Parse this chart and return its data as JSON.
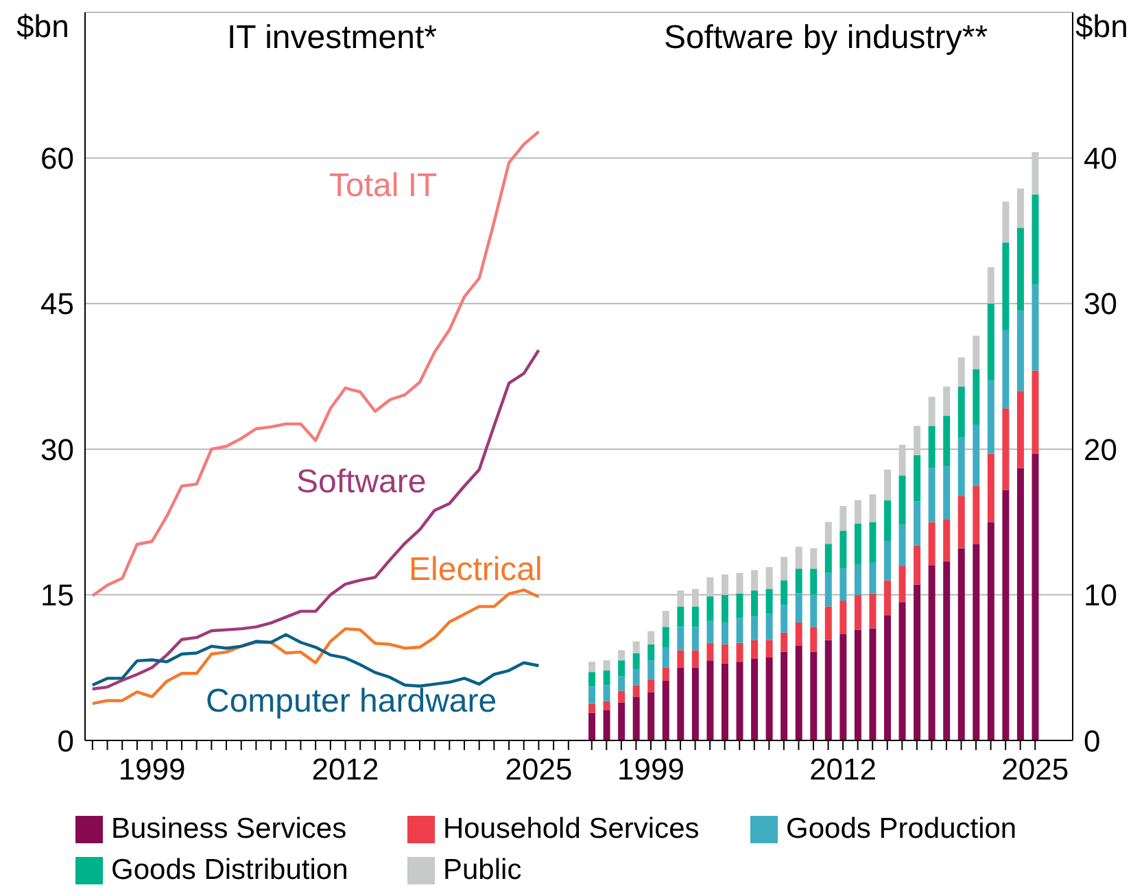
{
  "chart_data": [
    {
      "type": "line",
      "title": "IT investment*",
      "ylabel": "$bn",
      "x": [
        1995,
        1996,
        1997,
        1998,
        1999,
        2000,
        2001,
        2002,
        2003,
        2004,
        2005,
        2006,
        2007,
        2008,
        2009,
        2010,
        2011,
        2012,
        2013,
        2014,
        2015,
        2016,
        2017,
        2018,
        2019,
        2020,
        2021,
        2022,
        2023,
        2024,
        2025
      ],
      "xlim": [
        1994.5,
        2027.7
      ],
      "xticks": [
        {
          "value": 1995,
          "label": null
        },
        {
          "value": 1996,
          "label": null
        },
        {
          "value": 1997,
          "label": null
        },
        {
          "value": 1998,
          "label": null
        },
        1999,
        {
          "value": 2000,
          "label": null
        },
        {
          "value": 2001,
          "label": null
        },
        {
          "value": 2002,
          "label": null
        },
        {
          "value": 2003,
          "label": null
        },
        {
          "value": 2004,
          "label": null
        },
        {
          "value": 2005,
          "label": null
        },
        {
          "value": 2006,
          "label": null
        },
        {
          "value": 2007,
          "label": null
        },
        {
          "value": 2008,
          "label": null
        },
        {
          "value": 2009,
          "label": null
        },
        {
          "value": 2010,
          "label": null
        },
        {
          "value": 2011,
          "label": null
        },
        2012,
        {
          "value": 2013,
          "label": null
        },
        {
          "value": 2014,
          "label": null
        },
        {
          "value": 2015,
          "label": null
        },
        {
          "value": 2016,
          "label": null
        },
        {
          "value": 2017,
          "label": null
        },
        {
          "value": 2018,
          "label": null
        },
        {
          "value": 2019,
          "label": null
        },
        {
          "value": 2020,
          "label": null
        },
        {
          "value": 2021,
          "label": null
        },
        {
          "value": 2022,
          "label": null
        },
        {
          "value": 2023,
          "label": null
        },
        {
          "value": 2024,
          "label": null
        },
        2025,
        {
          "value": 2026,
          "label": null
        },
        {
          "value": 2027,
          "label": null
        }
      ],
      "ylim": [
        0,
        75
      ],
      "yticks": [
        0,
        15,
        30,
        45,
        60
      ],
      "grid": "y",
      "legend": false,
      "series": [
        {
          "name": "Total IT",
          "color": "#f47b7b",
          "values": [
            14.9,
            16.0,
            16.7,
            20.2,
            20.5,
            23.1,
            26.2,
            26.4,
            30.0,
            30.3,
            31.1,
            32.1,
            32.3,
            32.6,
            32.6,
            30.9,
            34.2,
            36.3,
            35.9,
            33.9,
            35.1,
            35.6,
            36.9,
            40.0,
            42.3,
            45.7,
            47.6,
            53.4,
            59.5,
            61.4,
            62.7
          ]
        },
        {
          "name": "Software",
          "color": "#9e3b78",
          "values": [
            5.3,
            5.5,
            6.2,
            6.8,
            7.5,
            8.8,
            10.4,
            10.6,
            11.3,
            11.4,
            11.5,
            11.7,
            12.1,
            12.7,
            13.3,
            13.3,
            15.0,
            16.1,
            16.5,
            16.8,
            18.6,
            20.3,
            21.7,
            23.7,
            24.4,
            26.2,
            27.9,
            32.4,
            36.8,
            37.8,
            40.2
          ]
        },
        {
          "name": "Electrical",
          "color": "#f5792a",
          "values": [
            3.8,
            4.1,
            4.1,
            5.0,
            4.5,
            6.1,
            6.9,
            6.9,
            8.9,
            9.1,
            9.7,
            10.1,
            10.1,
            9.0,
            9.1,
            8.0,
            10.2,
            11.5,
            11.4,
            10.0,
            9.9,
            9.5,
            9.6,
            10.6,
            12.2,
            13.0,
            13.8,
            13.8,
            15.1,
            15.5,
            14.8
          ]
        },
        {
          "name": "Computer hardware",
          "color": "#0b6088",
          "values": [
            5.7,
            6.4,
            6.4,
            8.2,
            8.3,
            8.1,
            8.9,
            9.0,
            9.7,
            9.5,
            9.7,
            10.2,
            10.1,
            10.9,
            10.1,
            9.6,
            8.8,
            8.5,
            7.8,
            7.0,
            6.5,
            5.7,
            5.6,
            5.8,
            6.0,
            6.4,
            5.8,
            6.8,
            7.2,
            8.0,
            7.7
          ]
        }
      ]
    },
    {
      "type": "bar",
      "title": "Software by industry**",
      "ylabel": "$bn",
      "stacked": true,
      "categories": [
        null,
        null,
        null,
        null,
        "1999",
        null,
        null,
        null,
        null,
        null,
        null,
        null,
        null,
        null,
        null,
        null,
        null,
        "2012",
        null,
        null,
        null,
        null,
        null,
        null,
        null,
        null,
        null,
        null,
        null,
        null,
        "2025"
      ],
      "ylim": [
        0,
        50
      ],
      "yticks": [
        0,
        10,
        20,
        30,
        40
      ],
      "grid": "y",
      "legend": "bottom",
      "series": [
        {
          "name": "Business Services",
          "color": "#850a50",
          "values": [
            1.9,
            2.1,
            2.6,
            3.0,
            3.3,
            4.1,
            5.0,
            5.0,
            5.5,
            5.3,
            5.4,
            5.6,
            5.7,
            6.1,
            6.5,
            6.1,
            6.9,
            7.3,
            7.6,
            7.7,
            8.6,
            9.5,
            10.7,
            12.0,
            12.3,
            13.2,
            13.5,
            15.0,
            17.2,
            18.7,
            19.7
          ]
        },
        {
          "name": "Household Services",
          "color": "#ee3e4b",
          "values": [
            0.6,
            0.6,
            0.8,
            0.8,
            0.9,
            0.9,
            1.2,
            1.2,
            1.2,
            1.3,
            1.3,
            1.3,
            1.2,
            1.3,
            1.6,
            1.7,
            2.3,
            2.3,
            2.4,
            2.4,
            2.4,
            2.5,
            2.7,
            3.0,
            2.9,
            3.6,
            4.0,
            4.7,
            5.6,
            5.3,
            5.7
          ]
        },
        {
          "name": "Goods Production",
          "color": "#3eadc2",
          "values": [
            1.2,
            1.1,
            1.0,
            1.1,
            1.3,
            1.4,
            1.6,
            1.6,
            1.5,
            1.5,
            1.7,
            1.6,
            1.8,
            1.9,
            2.0,
            2.2,
            2.3,
            2.2,
            2.1,
            2.1,
            2.7,
            2.8,
            3.0,
            3.7,
            3.6,
            4.0,
            4.2,
            5.0,
            5.4,
            5.5,
            5.9
          ]
        },
        {
          "name": "Goods Distribution",
          "color": "#00b28a",
          "values": [
            1.0,
            1.0,
            1.1,
            1.1,
            1.1,
            1.4,
            1.4,
            1.4,
            1.7,
            1.9,
            1.7,
            1.8,
            1.7,
            1.7,
            1.7,
            1.8,
            2.0,
            2.6,
            2.8,
            2.8,
            2.8,
            3.4,
            3.2,
            2.9,
            3.5,
            3.5,
            3.8,
            5.3,
            6.0,
            5.7,
            6.2
          ]
        },
        {
          "name": "Public",
          "color": "#c8c9c9",
          "values": [
            0.7,
            0.7,
            0.7,
            0.8,
            0.9,
            1.1,
            1.1,
            1.2,
            1.3,
            1.4,
            1.4,
            1.4,
            1.5,
            1.6,
            1.5,
            1.4,
            1.5,
            1.7,
            1.6,
            1.9,
            2.1,
            2.1,
            2.0,
            2.0,
            2.0,
            2.0,
            2.3,
            2.5,
            2.8,
            2.7,
            2.9
          ]
        }
      ]
    }
  ]
}
